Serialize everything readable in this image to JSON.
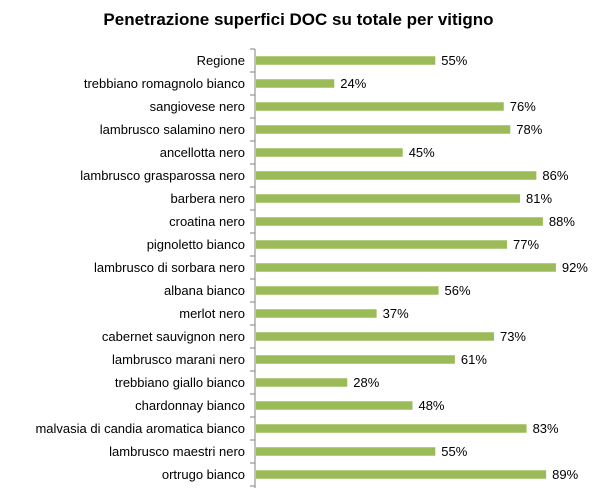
{
  "chart_data": {
    "type": "bar",
    "orientation": "horizontal",
    "title": "Penetrazione superfici DOC su totale  per vitigno",
    "xlim": [
      0,
      100
    ],
    "value_suffix": "%",
    "bar_color": "#9bbb59",
    "categories": [
      "Regione",
      "trebbiano romagnolo bianco",
      "sangiovese nero",
      "lambrusco salamino nero",
      "ancellotta nero",
      "lambrusco grasparossa nero",
      "barbera nero",
      "croatina nero",
      "pignoletto bianco",
      "lambrusco di sorbara nero",
      "albana bianco",
      "merlot nero",
      "cabernet sauvignon nero",
      "lambrusco marani nero",
      "trebbiano giallo bianco",
      "chardonnay bianco",
      "malvasia di candia aromatica bianco",
      "lambrusco maestri nero",
      "ortrugo bianco"
    ],
    "values": [
      55,
      24,
      76,
      78,
      45,
      86,
      81,
      88,
      77,
      92,
      56,
      37,
      73,
      61,
      28,
      48,
      83,
      55,
      89
    ],
    "labels": [
      "55%",
      "24%",
      "76%",
      "78%",
      "45%",
      "86%",
      "81%",
      "88%",
      "77%",
      "92%",
      "56%",
      "37%",
      "73%",
      "61%",
      "28%",
      "48%",
      "83%",
      "55%",
      "89%"
    ]
  }
}
